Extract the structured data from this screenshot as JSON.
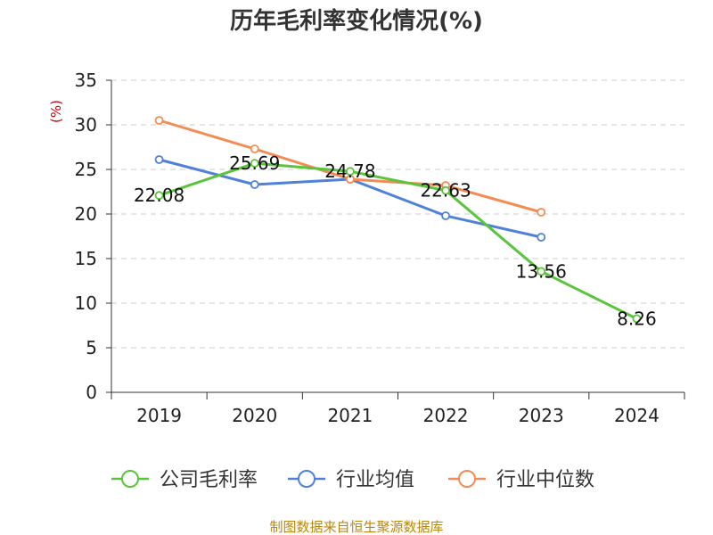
{
  "chart_data": {
    "type": "line",
    "title": "历年毛利率变化情况(%)",
    "ylabel": "(%)",
    "xlabel": "",
    "categories": [
      "2019",
      "2020",
      "2021",
      "2022",
      "2023",
      "2024"
    ],
    "ylim": [
      0,
      35
    ],
    "yticks": [
      0,
      5,
      10,
      15,
      20,
      25,
      30,
      35
    ],
    "grid": "horizontal-dashed",
    "legend_position": "bottom",
    "series": [
      {
        "name": "公司毛利率",
        "color": "#5ac43a",
        "values": [
          22.08,
          25.69,
          24.78,
          22.63,
          13.56,
          8.26
        ],
        "labels": [
          "22.08",
          "25.69",
          "24.78",
          "22.63",
          "13.56",
          "8.26"
        ]
      },
      {
        "name": "行业均值",
        "color": "#4f81d9",
        "values": [
          26.1,
          23.3,
          23.9,
          19.8,
          17.4,
          null
        ]
      },
      {
        "name": "行业中位数",
        "color": "#f28c54",
        "values": [
          30.5,
          27.3,
          23.9,
          23.2,
          20.2,
          null
        ]
      }
    ]
  },
  "source": "制图数据来自恒生聚源数据库"
}
